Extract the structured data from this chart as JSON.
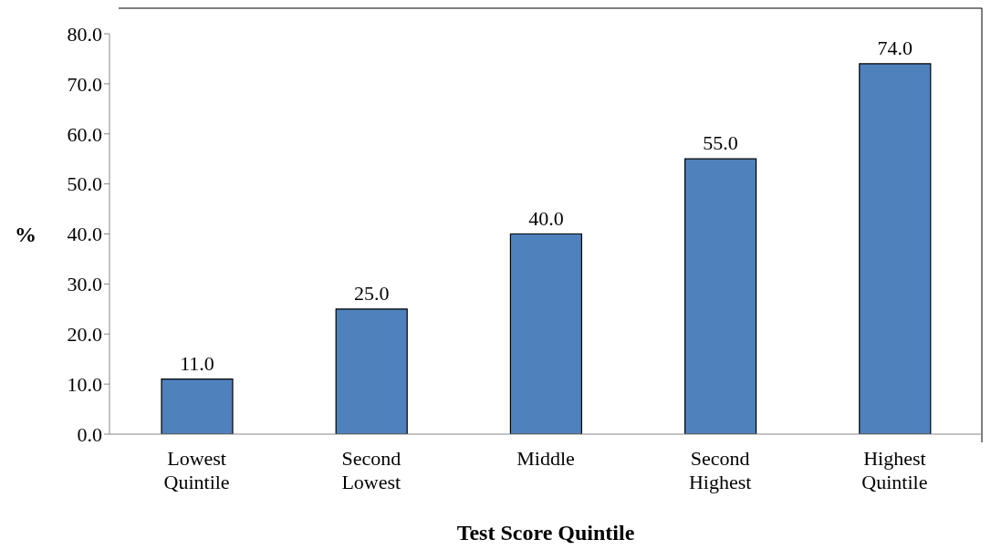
{
  "chart_data": {
    "type": "bar",
    "xlabel": "Test Score Quintile",
    "ylabel": "%",
    "categories": [
      "Lowest Quintile",
      "Second Lowest",
      "Middle",
      "Second Highest",
      "Highest Quintile"
    ],
    "values": [
      11,
      25,
      40,
      55,
      74
    ],
    "color": "#4f81bd",
    "value_labels": [
      "11.0",
      "25.0",
      "40.0",
      "55.0",
      "74.0"
    ],
    "ylim": [
      0,
      80
    ],
    "yticks": [
      {
        "value": 0,
        "label": "0.0"
      },
      {
        "value": 10,
        "label": "10.0"
      },
      {
        "value": 20,
        "label": "20.0"
      },
      {
        "value": 30,
        "label": "30.0"
      },
      {
        "value": 40,
        "label": "40.0"
      },
      {
        "value": 50,
        "label": "50.0"
      },
      {
        "value": 60,
        "label": "60.0"
      },
      {
        "value": 70,
        "label": "70.0"
      },
      {
        "value": 80,
        "label": "80.0"
      }
    ],
    "grid": false,
    "legend": false
  }
}
